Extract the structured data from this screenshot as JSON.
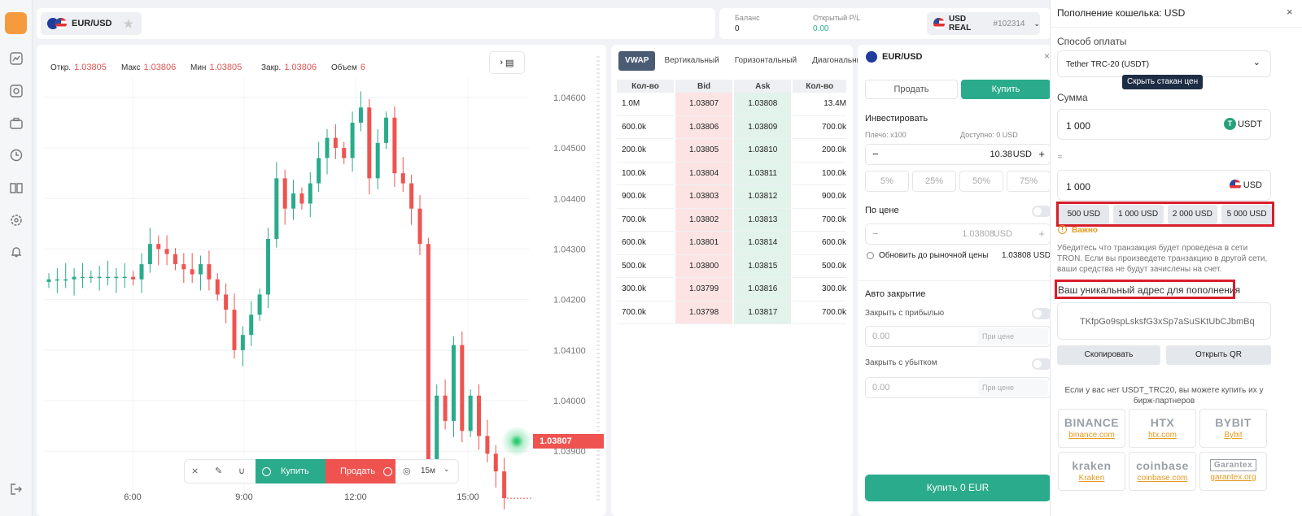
{
  "pair": "EUR/USD",
  "header": {
    "balance_label": "Баланс",
    "balance_value": "0",
    "pl_label": "Открытый P/L",
    "pl_value": "0.00",
    "account_name": "USD REAL",
    "account_id": "#102314"
  },
  "chart": {
    "ohlc": {
      "open_label": "Откр.",
      "open": "1.03805",
      "high_label": "Макс",
      "high": "1.03806",
      "low_label": "Мин",
      "low": "1.03805",
      "close_label": "Закр.",
      "close": "1.03806",
      "volume_label": "Объем",
      "volume": "6"
    },
    "price_label": "1.03807",
    "toolbar": {
      "buy": "Купить",
      "sell": "Продать",
      "timeframe": "15м"
    },
    "chart_data": {
      "type": "candlestick",
      "x_ticks": [
        "6:00",
        "9:00",
        "12:00",
        "15:00"
      ],
      "y_ticks": [
        "1.04600",
        "1.04500",
        "1.04400",
        "1.04300",
        "1.04200",
        "1.04100",
        "1.04000",
        "1.03900"
      ],
      "ylim": [
        1.0382,
        1.0464
      ],
      "last_price": 1.03807
    }
  },
  "orderbook": {
    "tabs": [
      "VWAP",
      "Вертикальный",
      "Горизонтальный",
      "Диагональный"
    ],
    "headers": [
      "Кол-во",
      "Bid",
      "Ask",
      "Кол-во"
    ],
    "rows": [
      [
        "1.0M",
        "1.03807",
        "1.03808",
        "13.4M"
      ],
      [
        "600.0k",
        "1.03806",
        "1.03809",
        "700.0k"
      ],
      [
        "200.0k",
        "1.03805",
        "1.03810",
        "200.0k"
      ],
      [
        "100.0k",
        "1.03804",
        "1.03811",
        "100.0k"
      ],
      [
        "900.0k",
        "1.03803",
        "1.03812",
        "900.0k"
      ],
      [
        "700.0k",
        "1.03802",
        "1.03813",
        "700.0k"
      ],
      [
        "600.0k",
        "1.03801",
        "1.03814",
        "600.0k"
      ],
      [
        "500.0k",
        "1.03800",
        "1.03815",
        "500.0k"
      ],
      [
        "300.0k",
        "1.03799",
        "1.03816",
        "300.0k"
      ],
      [
        "700.0k",
        "1.03798",
        "1.03817",
        "700.0k"
      ]
    ]
  },
  "order": {
    "title": "EUR/USD",
    "sell": "Продать",
    "buy": "Купить",
    "invest": "Инвестировать",
    "leverage": "Плечо: х100",
    "available": "Доступно: 0 USD",
    "amount": "10.38",
    "currency": "USD",
    "minus": "−",
    "plus": "+",
    "pcts": [
      "5%",
      "25%",
      "50%",
      "75%"
    ],
    "by_price": "По цене",
    "price_value": "1.03808",
    "price_currency": "USD",
    "update_market": "Обновить до рыночной цены",
    "market_price": "1.03808 USD",
    "auto_close": "Авто закрытие",
    "tp": "Закрыть с прибылью",
    "sl": "Закрыть с убытком",
    "zero": "0.00",
    "at_price": "При цене",
    "submit": "Купить 0 EUR"
  },
  "wallet": {
    "title": "Пополнение кошелька: USD",
    "method_label": "Способ оплаты",
    "method_value": "Tether TRC-20 (USDT)",
    "tooltip": "Скрыть стакан цен",
    "amount_label": "Сумма",
    "amount_value": "1 000",
    "amount_currency": "USDT",
    "approx": "≈",
    "usd_value": "1 000",
    "usd_currency": "USD",
    "quick": [
      "500 USD",
      "1 000 USD",
      "2 000 USD",
      "5 000 USD"
    ],
    "important": "Важно",
    "warning": "Убедитесь что транзакция будет проведена в сети TRON. Если вы произведете транзакцию в другой сети, ваши средства не будут зачислены на счет.",
    "address_label": "Ваш уникальный адрес для пополнения",
    "address": "TKfpGo9spLsksfG3xSp7aSuSKtUbCJbmBq",
    "copy": "Скопировать",
    "qr": "Открыть QR",
    "partners_note": "Если у вас нет USDT_TRC20, вы можете купить их у бирж-партнеров",
    "partners": [
      {
        "name": "BINANCE",
        "link": "binance.com"
      },
      {
        "name": "HTX",
        "link": "htx.com"
      },
      {
        "name": "BYBIT",
        "link": "Bybit"
      },
      {
        "name": "kraken",
        "link": "Kraken"
      },
      {
        "name": "coinbase",
        "link": "coinbase.com"
      },
      {
        "name": "Garantex",
        "link": "garantex.org"
      }
    ]
  },
  "colors": {
    "green": "#2aab8b",
    "red": "#ef5350",
    "accent": "#f59b3d"
  }
}
